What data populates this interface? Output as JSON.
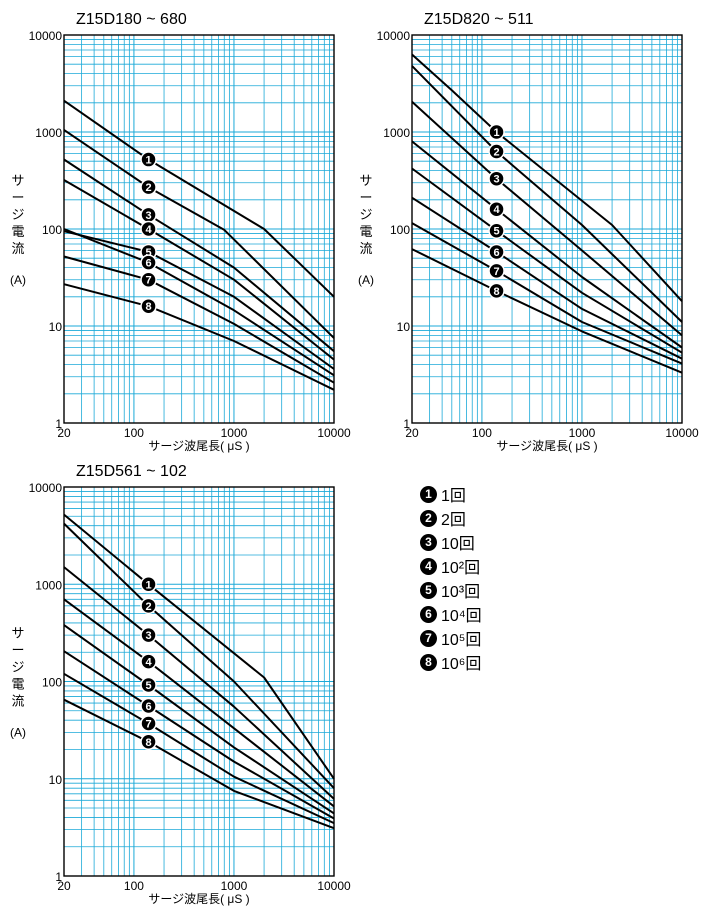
{
  "colors": {
    "grid": "#1ba9d8",
    "curve": "#000000",
    "frame": "#000000"
  },
  "legend": [
    {
      "num": "1",
      "label": "1回"
    },
    {
      "num": "2",
      "label": "2回"
    },
    {
      "num": "3",
      "label": "10回"
    },
    {
      "num": "4",
      "label": "10²回"
    },
    {
      "num": "5",
      "label": "10³回"
    },
    {
      "num": "6",
      "label": "10⁴回"
    },
    {
      "num": "7",
      "label": "10⁵回"
    },
    {
      "num": "8",
      "label": "10⁶回"
    }
  ],
  "chart_data": [
    {
      "type": "line",
      "title": "Z15D180 ~ 680",
      "xlabel": "サージ波尾長( μS )",
      "ylabel": "サージ電流",
      "ylabel_unit": "(A)",
      "xscale": "log",
      "yscale": "log",
      "xlim": [
        20,
        10000
      ],
      "ylim": [
        1,
        10000
      ],
      "xticks": [
        "20",
        "100",
        "1000",
        "10000"
      ],
      "yticks": [
        "1",
        "10",
        "100",
        "1000",
        "10000"
      ],
      "grid": true,
      "series": [
        {
          "name": "1",
          "x": [
            20,
            140,
            2000,
            10000
          ],
          "y": [
            2100,
            520,
            100,
            20
          ]
        },
        {
          "name": "2",
          "x": [
            20,
            140,
            800,
            10000
          ],
          "y": [
            1050,
            270,
            98,
            7.5
          ]
        },
        {
          "name": "3",
          "x": [
            20,
            140,
            1000,
            10000
          ],
          "y": [
            520,
            140,
            40,
            5.5
          ]
        },
        {
          "name": "4",
          "x": [
            20,
            140,
            1000,
            10000
          ],
          "y": [
            320,
            100,
            30,
            4.5
          ]
        },
        {
          "name": "5",
          "x": [
            20,
            140,
            1000,
            10000
          ],
          "y": [
            95,
            58,
            20,
            3.6
          ]
        },
        {
          "name": "6",
          "x": [
            20,
            140,
            1000,
            10000
          ],
          "y": [
            100,
            45,
            14.5,
            3.1
          ]
        },
        {
          "name": "7",
          "x": [
            20,
            140,
            1000,
            10000
          ],
          "y": [
            52,
            30,
            10.5,
            2.6
          ]
        },
        {
          "name": "8",
          "x": [
            20,
            140,
            1000,
            10000
          ],
          "y": [
            27,
            16,
            7,
            2.2
          ]
        }
      ]
    },
    {
      "type": "line",
      "title": "Z15D820 ~ 511",
      "xlabel": "サージ波尾長( μS )",
      "ylabel": "サージ電流",
      "ylabel_unit": "(A)",
      "xscale": "log",
      "yscale": "log",
      "xlim": [
        20,
        10000
      ],
      "ylim": [
        1,
        10000
      ],
      "xticks": [
        "20",
        "100",
        "1000",
        "10000"
      ],
      "yticks": [
        "1",
        "10",
        "100",
        "1000",
        "10000"
      ],
      "grid": true,
      "series": [
        {
          "name": "1",
          "x": [
            20,
            50,
            140,
            2000,
            10000
          ],
          "y": [
            6300,
            2700,
            1000,
            110,
            18
          ]
        },
        {
          "name": "2",
          "x": [
            20,
            140,
            1000,
            10000
          ],
          "y": [
            4800,
            630,
            110,
            11
          ]
        },
        {
          "name": "3",
          "x": [
            20,
            140,
            1000,
            10000
          ],
          "y": [
            2050,
            330,
            60,
            8
          ]
        },
        {
          "name": "4",
          "x": [
            20,
            140,
            1000,
            10000
          ],
          "y": [
            800,
            160,
            32,
            6
          ]
        },
        {
          "name": "5",
          "x": [
            20,
            140,
            1000,
            10000
          ],
          "y": [
            420,
            96,
            22,
            5.3
          ]
        },
        {
          "name": "6",
          "x": [
            20,
            140,
            1000,
            10000
          ],
          "y": [
            210,
            58,
            15,
            4.6
          ]
        },
        {
          "name": "7",
          "x": [
            20,
            140,
            1000,
            10000
          ],
          "y": [
            115,
            37,
            11,
            4.1
          ]
        },
        {
          "name": "8",
          "x": [
            20,
            140,
            1000,
            10000
          ],
          "y": [
            62,
            23,
            8.8,
            3.3
          ]
        }
      ]
    },
    {
      "type": "line",
      "title": "Z15D561 ~ 102",
      "xlabel": "サージ波尾長( μS )",
      "ylabel": "サージ電流",
      "ylabel_unit": "(A)",
      "xscale": "log",
      "yscale": "log",
      "xlim": [
        20,
        10000
      ],
      "ylim": [
        1,
        10000
      ],
      "xticks": [
        "20",
        "100",
        "1000",
        "10000"
      ],
      "yticks": [
        "1",
        "10",
        "100",
        "1000",
        "10000"
      ],
      "grid": true,
      "series": [
        {
          "name": "1",
          "x": [
            20,
            140,
            2000,
            10000
          ],
          "y": [
            5200,
            1000,
            110,
            10
          ]
        },
        {
          "name": "2",
          "x": [
            20,
            140,
            1000,
            10000
          ],
          "y": [
            4200,
            600,
            100,
            8
          ]
        },
        {
          "name": "3",
          "x": [
            20,
            140,
            1000,
            10000
          ],
          "y": [
            1500,
            300,
            55,
            6.2
          ]
        },
        {
          "name": "4",
          "x": [
            20,
            140,
            1000,
            10000
          ],
          "y": [
            700,
            160,
            33,
            5.2
          ]
        },
        {
          "name": "5",
          "x": [
            20,
            140,
            1000,
            10000
          ],
          "y": [
            380,
            92,
            21,
            4.4
          ]
        },
        {
          "name": "6",
          "x": [
            20,
            140,
            1000,
            10000
          ],
          "y": [
            205,
            56,
            15,
            3.9
          ]
        },
        {
          "name": "7",
          "x": [
            20,
            140,
            1000,
            10000
          ],
          "y": [
            120,
            37,
            10.5,
            3.5
          ]
        },
        {
          "name": "8",
          "x": [
            20,
            140,
            1000,
            10000
          ],
          "y": [
            65,
            24,
            7.5,
            3.1
          ]
        }
      ]
    }
  ]
}
